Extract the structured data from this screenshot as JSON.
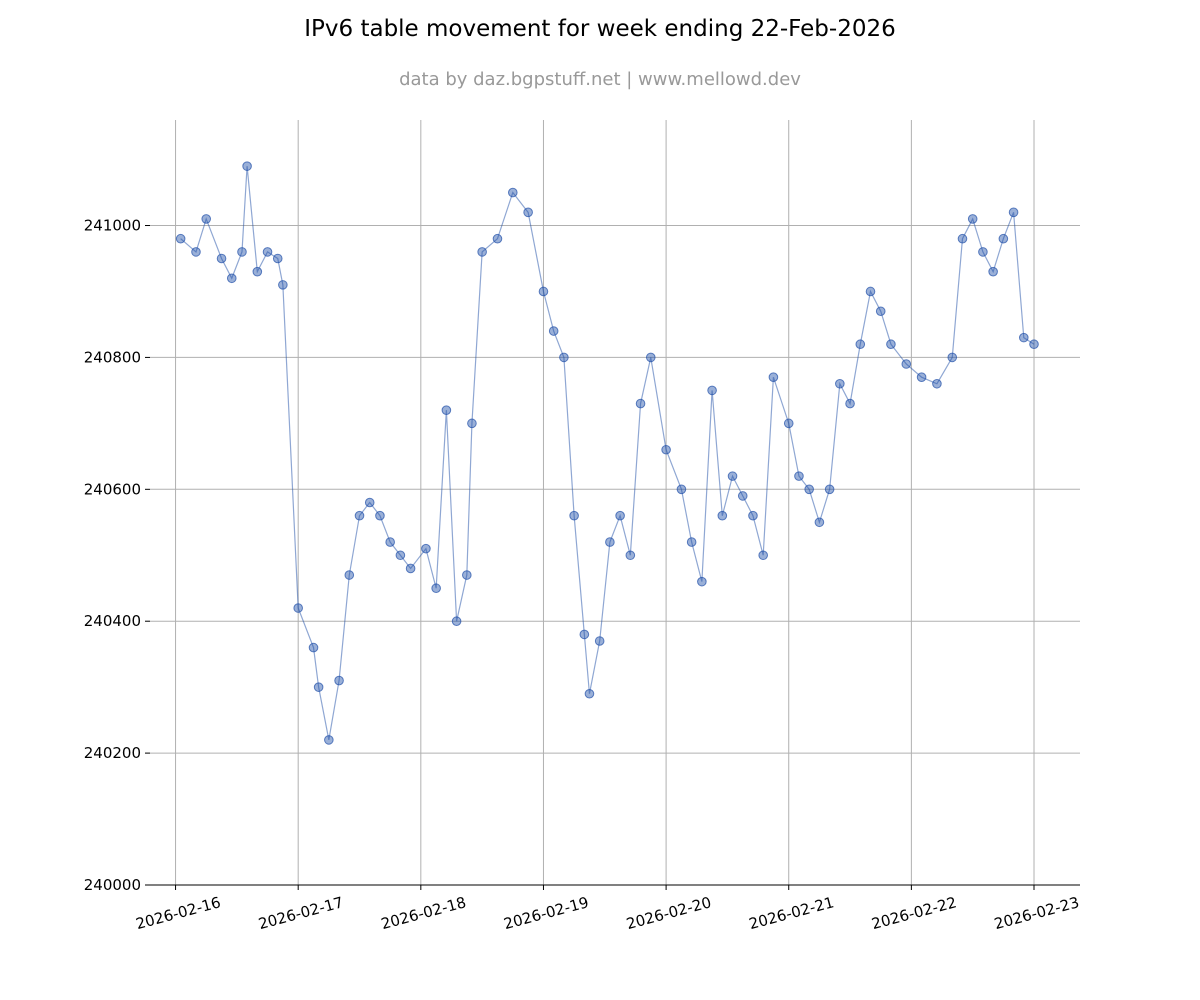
{
  "chart_data": {
    "type": "scatter",
    "connected": true,
    "title": "IPv6 table movement for week ending 22-Feb-2026",
    "subtitle": "data by daz.bgpstuff.net | www.mellowd.dev",
    "xlabel": "",
    "ylabel": "",
    "xlim": [
      "2026-02-15T19:00",
      "2026-02-23T09:00"
    ],
    "ylim": [
      240000,
      241160
    ],
    "x_ticks": [
      "2026-02-16",
      "2026-02-17",
      "2026-02-18",
      "2026-02-19",
      "2026-02-20",
      "2026-02-21",
      "2026-02-22",
      "2026-02-23"
    ],
    "y_ticks": [
      "240000",
      "240200",
      "240400",
      "240600",
      "240800",
      "241000"
    ],
    "grid": true,
    "colors": {
      "series": "#1f4fa8",
      "grid": "#b0b0b0"
    },
    "series": [
      {
        "x": [
          "2026-02-16T01:00",
          "2026-02-16T04:00",
          "2026-02-16T06:00",
          "2026-02-16T09:00",
          "2026-02-16T11:00",
          "2026-02-16T13:00",
          "2026-02-16T14:00",
          "2026-02-16T16:00",
          "2026-02-16T18:00",
          "2026-02-16T20:00",
          "2026-02-16T21:00",
          "2026-02-17T00:00",
          "2026-02-17T03:00",
          "2026-02-17T04:00",
          "2026-02-17T06:00",
          "2026-02-17T08:00",
          "2026-02-17T10:00",
          "2026-02-17T12:00",
          "2026-02-17T14:00",
          "2026-02-17T16:00",
          "2026-02-17T18:00",
          "2026-02-17T20:00",
          "2026-02-17T22:00",
          "2026-02-18T01:00",
          "2026-02-18T03:00",
          "2026-02-18T05:00",
          "2026-02-18T07:00",
          "2026-02-18T09:00",
          "2026-02-18T10:00",
          "2026-02-18T12:00",
          "2026-02-18T15:00",
          "2026-02-18T18:00",
          "2026-02-18T21:00",
          "2026-02-19T00:00",
          "2026-02-19T02:00",
          "2026-02-19T04:00",
          "2026-02-19T06:00",
          "2026-02-19T08:00",
          "2026-02-19T09:00",
          "2026-02-19T11:00",
          "2026-02-19T13:00",
          "2026-02-19T15:00",
          "2026-02-19T17:00",
          "2026-02-19T19:00",
          "2026-02-19T21:00",
          "2026-02-20T00:00",
          "2026-02-20T03:00",
          "2026-02-20T05:00",
          "2026-02-20T07:00",
          "2026-02-20T09:00",
          "2026-02-20T11:00",
          "2026-02-20T13:00",
          "2026-02-20T15:00",
          "2026-02-20T17:00",
          "2026-02-20T19:00",
          "2026-02-20T21:00",
          "2026-02-21T00:00",
          "2026-02-21T02:00",
          "2026-02-21T04:00",
          "2026-02-21T06:00",
          "2026-02-21T08:00",
          "2026-02-21T10:00",
          "2026-02-21T12:00",
          "2026-02-21T14:00",
          "2026-02-21T16:00",
          "2026-02-21T18:00",
          "2026-02-21T20:00",
          "2026-02-21T23:00",
          "2026-02-22T02:00",
          "2026-02-22T05:00",
          "2026-02-22T08:00",
          "2026-02-22T10:00",
          "2026-02-22T12:00",
          "2026-02-22T14:00",
          "2026-02-22T16:00",
          "2026-02-22T18:00",
          "2026-02-22T20:00",
          "2026-02-22T22:00",
          "2026-02-23T00:00"
        ],
        "y": [
          240980,
          240960,
          241010,
          240950,
          240920,
          240960,
          241090,
          240930,
          240960,
          240950,
          240910,
          240420,
          240360,
          240300,
          240220,
          240310,
          240470,
          240560,
          240580,
          240560,
          240520,
          240500,
          240480,
          240510,
          240450,
          240720,
          240400,
          240470,
          240700,
          240960,
          240980,
          241050,
          241020,
          240900,
          240840,
          240800,
          240560,
          240380,
          240290,
          240370,
          240520,
          240560,
          240500,
          240730,
          240800,
          240660,
          240600,
          240520,
          240460,
          240750,
          240560,
          240620,
          240590,
          240560,
          240500,
          240770,
          240700,
          240620,
          240600,
          240550,
          240600,
          240760,
          240730,
          240820,
          240900,
          240870,
          240820,
          240790,
          240770,
          240760,
          240800,
          240980,
          241010,
          240960,
          240930,
          240980,
          241020,
          240830,
          240820
        ]
      }
    ]
  }
}
